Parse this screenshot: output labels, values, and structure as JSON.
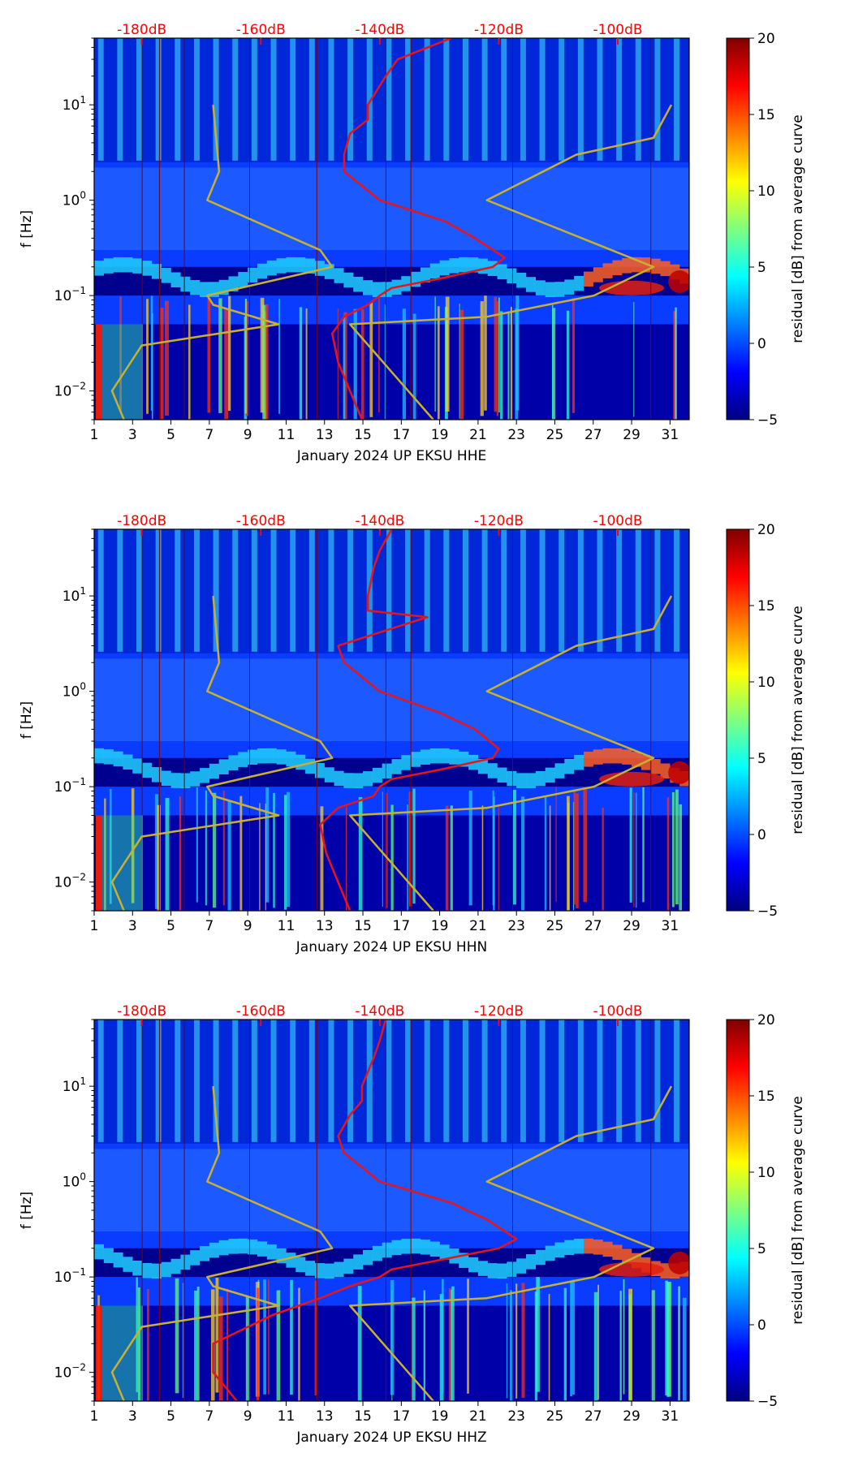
{
  "colormap": [
    "#00007f",
    "#0000ff",
    "#007fff",
    "#00ffff",
    "#7fff7f",
    "#ffff00",
    "#ff7f00",
    "#ff0000",
    "#7f0000"
  ],
  "colors": {
    "average_curve": "#e8141a",
    "noise_model": "#c8b030",
    "top_axis_text": "#ff0000",
    "axis": "#000000"
  },
  "chart_data": [
    {
      "type": "heatmap",
      "channel": "HHE",
      "xlabel": "January 2024 UP EKSU  HHE",
      "ylabel": "f [Hz]",
      "x_ticks": [
        "1",
        "3",
        "5",
        "7",
        "9",
        "11",
        "13",
        "15",
        "17",
        "19",
        "21",
        "23",
        "25",
        "27",
        "29",
        "31"
      ],
      "xlim": [
        1,
        32
      ],
      "ylim_hz": [
        0.005,
        50
      ],
      "y_ticks": [
        {
          "label": "10",
          "exp": "−2",
          "value": 0.01
        },
        {
          "label": "10",
          "exp": "−1",
          "value": 0.1
        },
        {
          "label": "10",
          "exp": "0",
          "value": 1
        },
        {
          "label": "10",
          "exp": "1",
          "value": 10
        }
      ],
      "top_axis": {
        "ticks": [
          "-180dB",
          "-160dB",
          "-140dB",
          "-120dB",
          "-100dB"
        ],
        "db_values": [
          -180,
          -160,
          -140,
          -120,
          -100
        ],
        "range_db": [
          -188,
          -88
        ]
      },
      "colorbar": {
        "label": "residual [dB] from average curve",
        "min": -5,
        "max": 20,
        "ticks": [
          "20",
          "15",
          "10",
          "5",
          "0",
          "−5"
        ]
      },
      "average_curve_db": {
        "f": [
          50,
          30,
          20,
          10,
          7,
          5,
          3,
          2,
          1,
          0.6,
          0.4,
          0.25,
          0.2,
          0.15,
          0.12,
          0.1,
          0.08,
          0.06,
          0.04,
          0.02,
          0.01,
          0.005
        ],
        "db": [
          -128,
          -137,
          -139,
          -142,
          -142,
          -145,
          -146,
          -146,
          -140,
          -129,
          -124,
          -119,
          -121,
          -130,
          -138,
          -140,
          -142,
          -146,
          -148,
          -147,
          -145,
          -143
        ]
      },
      "nlnm_db": {
        "f": [
          10,
          2,
          1,
          0.3,
          0.2,
          0.1,
          0.08,
          0.05,
          0.03,
          0.01,
          0.005
        ],
        "db": [
          -168,
          -167,
          -169,
          -150,
          -148,
          -169,
          -168,
          -157,
          -180,
          -185,
          -183
        ]
      },
      "nhnm_db": {
        "f": [
          10,
          4.5,
          3,
          1,
          0.2,
          0.1,
          0.06,
          0.05,
          0.005
        ],
        "db": [
          -91,
          -94,
          -107,
          -122,
          -94,
          -104,
          -122,
          -145,
          -131
        ]
      }
    },
    {
      "type": "heatmap",
      "channel": "HHN",
      "xlabel": "January 2024 UP EKSU  HHN",
      "ylabel": "f [Hz]",
      "x_ticks": [
        "1",
        "3",
        "5",
        "7",
        "9",
        "11",
        "13",
        "15",
        "17",
        "19",
        "21",
        "23",
        "25",
        "27",
        "29",
        "31"
      ],
      "xlim": [
        1,
        32
      ],
      "ylim_hz": [
        0.005,
        50
      ],
      "y_ticks": [
        {
          "label": "10",
          "exp": "−2",
          "value": 0.01
        },
        {
          "label": "10",
          "exp": "−1",
          "value": 0.1
        },
        {
          "label": "10",
          "exp": "0",
          "value": 1
        },
        {
          "label": "10",
          "exp": "1",
          "value": 10
        }
      ],
      "top_axis": {
        "ticks": [
          "-180dB",
          "-160dB",
          "-140dB",
          "-120dB",
          "-100dB"
        ],
        "db_values": [
          -180,
          -160,
          -140,
          -120,
          -100
        ],
        "range_db": [
          -188,
          -88
        ]
      },
      "colorbar": {
        "label": "residual [dB] from average curve",
        "min": -5,
        "max": 20,
        "ticks": [
          "20",
          "15",
          "10",
          "5",
          "0",
          "−5"
        ]
      },
      "average_curve_db": {
        "f": [
          50,
          30,
          20,
          10,
          7,
          6,
          3,
          2,
          1,
          0.6,
          0.4,
          0.25,
          0.2,
          0.15,
          0.12,
          0.1,
          0.08,
          0.06,
          0.04,
          0.02,
          0.01,
          0.005
        ],
        "db": [
          -138,
          -140,
          -141,
          -142,
          -142,
          -132,
          -147,
          -146,
          -140,
          -130,
          -124,
          -120,
          -121,
          -130,
          -138,
          -140,
          -141,
          -147,
          -150,
          -149,
          -147,
          -145
        ]
      },
      "nlnm_db": {
        "f": [
          10,
          2,
          1,
          0.3,
          0.2,
          0.1,
          0.08,
          0.05,
          0.03,
          0.01,
          0.005
        ],
        "db": [
          -168,
          -167,
          -169,
          -150,
          -148,
          -169,
          -168,
          -157,
          -180,
          -185,
          -183
        ]
      },
      "nhnm_db": {
        "f": [
          10,
          4.5,
          3,
          1,
          0.2,
          0.1,
          0.06,
          0.05,
          0.005
        ],
        "db": [
          -91,
          -94,
          -107,
          -122,
          -94,
          -104,
          -122,
          -145,
          -131
        ]
      }
    },
    {
      "type": "heatmap",
      "channel": "HHZ",
      "xlabel": "January 2024 UP EKSU  HHZ",
      "ylabel": "f [Hz]",
      "x_ticks": [
        "1",
        "3",
        "5",
        "7",
        "9",
        "11",
        "13",
        "15",
        "17",
        "19",
        "21",
        "23",
        "25",
        "27",
        "29",
        "31"
      ],
      "xlim": [
        1,
        32
      ],
      "ylim_hz": [
        0.005,
        50
      ],
      "y_ticks": [
        {
          "label": "10",
          "exp": "−2",
          "value": 0.01
        },
        {
          "label": "10",
          "exp": "−1",
          "value": 0.1
        },
        {
          "label": "10",
          "exp": "0",
          "value": 1
        },
        {
          "label": "10",
          "exp": "1",
          "value": 10
        }
      ],
      "top_axis": {
        "ticks": [
          "-180dB",
          "-160dB",
          "-140dB",
          "-120dB",
          "-100dB"
        ],
        "db_values": [
          -180,
          -160,
          -140,
          -120,
          -100
        ],
        "range_db": [
          -188,
          -88
        ]
      },
      "colorbar": {
        "label": "residual [dB] from average curve",
        "min": -5,
        "max": 20,
        "ticks": [
          "20",
          "15",
          "10",
          "5",
          "0",
          "−5"
        ]
      },
      "average_curve_db": {
        "f": [
          50,
          30,
          20,
          10,
          7,
          5,
          3,
          2,
          1,
          0.6,
          0.4,
          0.25,
          0.2,
          0.15,
          0.12,
          0.1,
          0.08,
          0.06,
          0.04,
          0.02,
          0.01,
          0.005
        ],
        "db": [
          -139,
          -140,
          -141,
          -143,
          -143,
          -145,
          -147,
          -146,
          -140,
          -128,
          -122,
          -117,
          -120,
          -130,
          -138,
          -140,
          -145,
          -150,
          -158,
          -168,
          -168,
          -164
        ]
      },
      "nlnm_db": {
        "f": [
          10,
          2,
          1,
          0.3,
          0.2,
          0.1,
          0.08,
          0.05,
          0.03,
          0.01,
          0.005
        ],
        "db": [
          -168,
          -167,
          -169,
          -150,
          -148,
          -169,
          -168,
          -157,
          -180,
          -185,
          -183
        ]
      },
      "nhnm_db": {
        "f": [
          10,
          4.5,
          3,
          1,
          0.2,
          0.1,
          0.06,
          0.05,
          0.005
        ],
        "db": [
          -91,
          -94,
          -107,
          -122,
          -94,
          -104,
          -122,
          -145,
          -131
        ]
      }
    }
  ]
}
